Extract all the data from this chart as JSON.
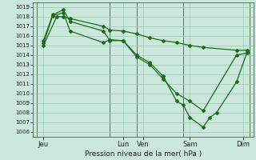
{
  "title": "Pression niveau de la mer( hPa )",
  "bg_color": "#cce8dd",
  "grid_color": "#99ccbb",
  "line_color": "#1a6b1a",
  "ylim": [
    1005.5,
    1019.5
  ],
  "yticks": [
    1006,
    1007,
    1008,
    1009,
    1010,
    1011,
    1012,
    1013,
    1014,
    1015,
    1016,
    1017,
    1018,
    1019
  ],
  "xlim": [
    -0.3,
    16.3
  ],
  "xtick_labels": [
    "Jeu",
    "Lun",
    "Ven",
    "Sam",
    "Dim"
  ],
  "xtick_positions": [
    0.5,
    6.5,
    8.0,
    11.5,
    15.5
  ],
  "vlines": [
    0,
    5.5,
    7.5,
    11.0,
    16.0
  ],
  "series1_x": [
    0.5,
    1.5,
    2.0,
    2.5,
    5.0,
    5.5,
    6.5,
    7.5,
    8.5,
    9.5,
    10.5,
    11.5,
    12.5,
    15.0,
    15.8
  ],
  "series1_y": [
    1015.0,
    1018.0,
    1018.0,
    1017.8,
    1017.0,
    1016.6,
    1016.5,
    1016.2,
    1015.8,
    1015.5,
    1015.3,
    1015.0,
    1014.8,
    1014.5,
    1014.5
  ],
  "series2_x": [
    0.5,
    1.2,
    2.0,
    2.5,
    5.0,
    5.5,
    6.5,
    7.5,
    8.5,
    9.5,
    10.5,
    11.5,
    12.5,
    15.0,
    15.8
  ],
  "series2_y": [
    1015.2,
    1018.1,
    1018.4,
    1016.5,
    1015.3,
    1015.6,
    1015.5,
    1013.8,
    1013.0,
    1011.5,
    1010.0,
    1009.2,
    1008.2,
    1014.0,
    1014.2
  ],
  "series3_x": [
    0.5,
    1.2,
    2.0,
    2.5,
    5.0,
    5.5,
    6.5,
    7.5,
    8.5,
    9.5,
    10.5,
    11.0,
    11.5,
    12.5,
    13.0,
    13.5,
    15.0,
    15.8
  ],
  "series3_y": [
    1015.5,
    1018.2,
    1018.7,
    1017.5,
    1016.5,
    1015.5,
    1015.5,
    1014.0,
    1013.2,
    1011.8,
    1009.2,
    1008.8,
    1007.5,
    1006.5,
    1007.5,
    1008.0,
    1011.2,
    1014.3
  ],
  "ytick_fontsize": 5.0,
  "xtick_fontsize": 6.0,
  "title_fontsize": 6.5,
  "linewidth": 0.9,
  "markersize": 2.0
}
